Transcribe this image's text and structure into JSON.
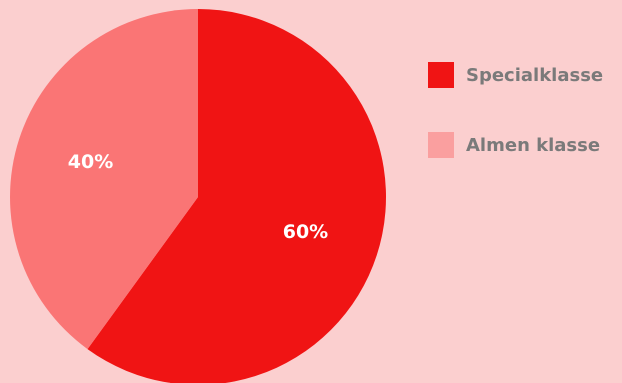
{
  "chart_data": {
    "type": "pie",
    "categories": [
      "Specialklasse",
      "Almen klasse"
    ],
    "values": [
      60,
      40
    ],
    "data_labels": [
      "60%",
      "40%"
    ],
    "colors": [
      "#f01414",
      "#fa7575"
    ],
    "legend_colors": [
      "#f01414",
      "#fa9f9f"
    ],
    "start_angle_deg": 0,
    "direction": "clockwise",
    "legend_position": "right",
    "title": ""
  },
  "legend": {
    "items": [
      {
        "label": "Specialklasse",
        "color": "#f01414"
      },
      {
        "label": "Almen klasse",
        "color": "#fa9f9f"
      }
    ]
  },
  "background_color": "#fbcfcf"
}
